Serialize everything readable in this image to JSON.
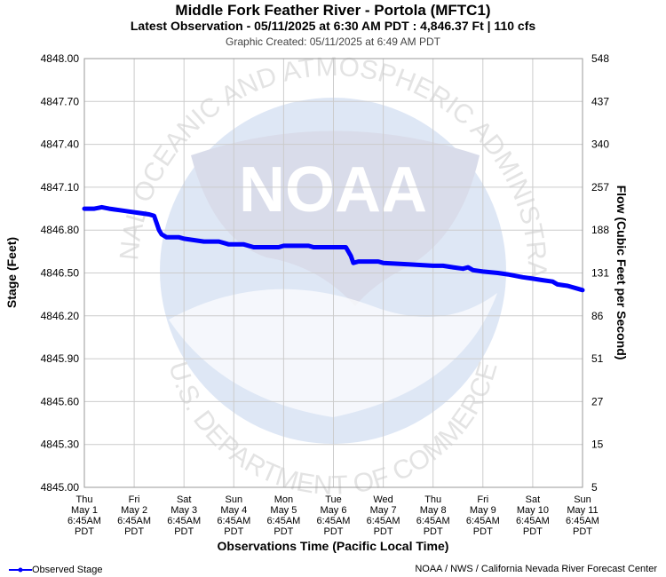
{
  "header": {
    "title": "Middle Fork Feather River - Portola (MFTC1)",
    "latest": "Latest Observation - 05/11/2025 at 6:30 AM PDT : 4,846.37 Ft | 110 cfs",
    "created": "Graphic Created: 05/11/2025 at 6:49 AM PDT"
  },
  "chart_data": {
    "type": "line",
    "title": "Middle Fork Feather River - Portola (MFTC1)",
    "xlabel": "Observations Time (Pacific Local Time)",
    "ylabel": "Stage (Feet)",
    "y2label": "Flow (Cubic Feet per Second)",
    "ylim": [
      4845.0,
      4848.0
    ],
    "y_ticks": [
      "4848.00",
      "4847.70",
      "4847.40",
      "4847.10",
      "4846.80",
      "4846.50",
      "4846.20",
      "4845.90",
      "4845.60",
      "4845.30",
      "4845.00"
    ],
    "y2_ticks": [
      "548",
      "437",
      "340",
      "257",
      "188",
      "131",
      "86",
      "51",
      "27",
      "15",
      "5"
    ],
    "x_ticks": [
      [
        "Thu",
        "May 1",
        "6:45AM",
        "PDT"
      ],
      [
        "Fri",
        "May 2",
        "6:45AM",
        "PDT"
      ],
      [
        "Sat",
        "May 3",
        "6:45AM",
        "PDT"
      ],
      [
        "Sun",
        "May 4",
        "6:45AM",
        "PDT"
      ],
      [
        "Mon",
        "May 5",
        "6:45AM",
        "PDT"
      ],
      [
        "Tue",
        "May 6",
        "6:45AM",
        "PDT"
      ],
      [
        "Wed",
        "May 7",
        "6:45AM",
        "PDT"
      ],
      [
        "Thu",
        "May 8",
        "6:45AM",
        "PDT"
      ],
      [
        "Fri",
        "May 9",
        "6:45AM",
        "PDT"
      ],
      [
        "Sat",
        "May 10",
        "6:45AM",
        "PDT"
      ],
      [
        "Sun",
        "May 11",
        "6:45AM",
        "PDT"
      ]
    ],
    "grid": true,
    "legend_position": "bottom-left",
    "series": [
      {
        "name": "Observed Stage",
        "color": "#0000ff",
        "points": [
          [
            0.0,
            4846.95
          ],
          [
            0.2,
            4846.95
          ],
          [
            0.35,
            4846.96
          ],
          [
            0.5,
            4846.95
          ],
          [
            0.7,
            4846.94
          ],
          [
            0.9,
            4846.93
          ],
          [
            1.1,
            4846.92
          ],
          [
            1.3,
            4846.91
          ],
          [
            1.4,
            4846.9
          ],
          [
            1.45,
            4846.85
          ],
          [
            1.5,
            4846.8
          ],
          [
            1.55,
            4846.77
          ],
          [
            1.65,
            4846.75
          ],
          [
            1.9,
            4846.75
          ],
          [
            2.0,
            4846.74
          ],
          [
            2.2,
            4846.73
          ],
          [
            2.4,
            4846.72
          ],
          [
            2.7,
            4846.72
          ],
          [
            2.9,
            4846.7
          ],
          [
            3.2,
            4846.7
          ],
          [
            3.4,
            4846.68
          ],
          [
            3.7,
            4846.68
          ],
          [
            3.9,
            4846.68
          ],
          [
            4.0,
            4846.69
          ],
          [
            4.2,
            4846.69
          ],
          [
            4.5,
            4846.69
          ],
          [
            4.6,
            4846.68
          ],
          [
            5.0,
            4846.68
          ],
          [
            5.25,
            4846.68
          ],
          [
            5.35,
            4846.62
          ],
          [
            5.4,
            4846.57
          ],
          [
            5.5,
            4846.58
          ],
          [
            5.7,
            4846.58
          ],
          [
            5.9,
            4846.58
          ],
          [
            6.0,
            4846.57
          ],
          [
            6.5,
            4846.56
          ],
          [
            7.0,
            4846.55
          ],
          [
            7.2,
            4846.55
          ],
          [
            7.4,
            4846.54
          ],
          [
            7.6,
            4846.53
          ],
          [
            7.7,
            4846.54
          ],
          [
            7.8,
            4846.52
          ],
          [
            8.0,
            4846.51
          ],
          [
            8.3,
            4846.5
          ],
          [
            8.5,
            4846.49
          ],
          [
            8.8,
            4846.47
          ],
          [
            9.0,
            4846.46
          ],
          [
            9.2,
            4846.45
          ],
          [
            9.4,
            4846.44
          ],
          [
            9.5,
            4846.42
          ],
          [
            9.7,
            4846.41
          ],
          [
            9.9,
            4846.39
          ],
          [
            10.0,
            4846.38
          ]
        ]
      }
    ]
  },
  "legend": {
    "label": "Observed Stage"
  },
  "footer": {
    "credit": "NOAA / NWS / California Nevada River Forecast Center"
  },
  "watermark": {
    "top_text": "NATIONAL OCEANIC AND ATMOSPHERIC ADMINISTRATION",
    "bottom_text": "U.S. DEPARTMENT OF COMMERCE",
    "logo_text": "NOAA"
  }
}
